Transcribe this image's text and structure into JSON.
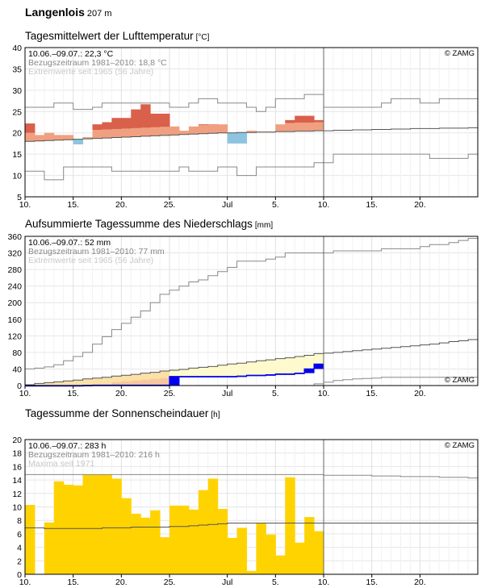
{
  "header": {
    "station": "Langenlois",
    "altitude": "207 m"
  },
  "x_axis": {
    "tick_labels": [
      "10.",
      "15.",
      "20.",
      "25.",
      "Jul",
      "5.",
      "10.",
      "15.",
      "20."
    ],
    "tick_days": [
      10,
      15,
      20,
      25,
      31,
      36,
      41,
      46,
      51
    ],
    "day_range": [
      10,
      56
    ],
    "today_day": 41
  },
  "chart_data": [
    {
      "type": "area",
      "title": "Tagesmittelwert der Lufttemperatur",
      "unit": "[°C]",
      "summary": {
        "period": "10.06.–09.07.: 22,3 °C",
        "reference": "Bezugszeitraum 1981–2010: 18,8 °C",
        "extremes": "Extremwerte seit 1965 (56 Jahre)"
      },
      "copyright": "© ZAMG",
      "ylim": [
        5,
        40
      ],
      "yticks": [
        5,
        10,
        15,
        20,
        25,
        30,
        35,
        40
      ],
      "colors": {
        "above_light": "#f0a080",
        "above_dark": "#d9604a",
        "below": "#8ec4e0",
        "line": "#555555",
        "extreme": "#888888"
      },
      "days": [
        10,
        11,
        12,
        13,
        14,
        15,
        16,
        17,
        18,
        19,
        20,
        21,
        22,
        23,
        24,
        25,
        26,
        27,
        28,
        29,
        30,
        31,
        32,
        33,
        34,
        35,
        36,
        37,
        38,
        39,
        40
      ],
      "values": [
        22.2,
        19.5,
        20,
        19.5,
        19.5,
        17.3,
        19,
        22,
        22.5,
        23.5,
        23.5,
        25.5,
        26.7,
        24.5,
        24.5,
        21.5,
        20.5,
        21.5,
        22,
        22,
        22,
        17.5,
        17.5,
        20.5,
        20.3,
        20.3,
        22,
        23,
        24,
        24,
        23
      ],
      "normal": [
        18.0,
        18.1,
        18.2,
        18.3,
        18.4,
        18.5,
        18.6,
        18.7,
        18.8,
        18.9,
        19.0,
        19.1,
        19.2,
        19.3,
        19.4,
        19.5,
        19.6,
        19.7,
        19.8,
        19.9,
        20.0,
        20.0,
        20.1,
        20.1,
        20.2,
        20.2,
        20.3,
        20.3,
        20.4,
        20.4,
        20.5,
        20.5,
        20.6,
        20.6,
        20.7,
        20.7,
        20.8,
        20.8,
        20.9,
        20.9,
        21.0,
        21.0,
        21.0,
        21.1,
        21.1,
        21.1,
        21.2
      ],
      "max": [
        26,
        26,
        26,
        27,
        27,
        25.5,
        25.5,
        26,
        27,
        27,
        27,
        27,
        27,
        27,
        27,
        26,
        26,
        27,
        28,
        28,
        27,
        27,
        27,
        26,
        25,
        26,
        28,
        28,
        28,
        29,
        29,
        26,
        26,
        26,
        26,
        26,
        26,
        27,
        28,
        28,
        28,
        27,
        27,
        28,
        28,
        28,
        28
      ],
      "min": [
        11,
        11,
        9,
        9,
        12,
        12,
        12,
        12,
        12,
        11,
        11,
        11,
        11,
        11,
        11,
        11,
        12,
        11,
        11,
        11,
        12,
        12,
        10,
        10,
        12,
        12,
        12,
        12,
        12,
        12,
        13,
        13,
        15,
        15,
        15,
        15,
        15,
        15,
        15,
        15,
        15,
        15,
        14,
        14,
        14,
        14,
        15
      ]
    },
    {
      "type": "area",
      "title": "Aufsummierte Tagessumme des Niederschlags",
      "unit": "[mm]",
      "summary": {
        "period": "10.06.–09.07.: 52 mm",
        "reference": "Bezugszeitraum 1981–2010: 77 mm",
        "extremes": "Extremwerte seit 1965 (56 Jahre)"
      },
      "copyright": "© ZAMG",
      "ylim": [
        0,
        360
      ],
      "yticks": [
        0,
        40,
        80,
        120,
        160,
        200,
        240,
        280,
        320,
        360
      ],
      "colors": {
        "actual": "#0000ee",
        "above_normal_fill": "#fffacd",
        "below_normal_fill": "#fbe1a8",
        "pre_event_fill": "#f7c7a0",
        "line": "#555555",
        "extreme": "#888888"
      },
      "days": [
        10,
        11,
        12,
        13,
        14,
        15,
        16,
        17,
        18,
        19,
        20,
        21,
        22,
        23,
        24,
        25,
        26,
        27,
        28,
        29,
        30,
        31,
        32,
        33,
        34,
        35,
        36,
        37,
        38,
        39,
        40
      ],
      "cumulative": [
        0,
        0,
        0,
        0,
        0,
        0,
        0.5,
        1,
        1,
        1,
        1,
        1,
        1,
        1,
        1,
        22,
        22,
        22,
        22,
        22,
        22,
        22,
        23,
        25,
        25,
        26,
        28,
        28,
        30,
        40,
        52
      ],
      "normal_cumulative": [
        2,
        5,
        7,
        9,
        11,
        13,
        16,
        18,
        20,
        23,
        25,
        27,
        30,
        32,
        35,
        37,
        39,
        42,
        44,
        46,
        49,
        52,
        54,
        57,
        60,
        62,
        65,
        67,
        70,
        73,
        77,
        78,
        80,
        82,
        84,
        86,
        88,
        90,
        92,
        94,
        96,
        98,
        100,
        103,
        106,
        108,
        111
      ],
      "max_cumulative": [
        40,
        42,
        45,
        50,
        60,
        70,
        80,
        100,
        118,
        135,
        150,
        165,
        180,
        200,
        220,
        230,
        240,
        250,
        255,
        265,
        275,
        285,
        300,
        300,
        300,
        305,
        310,
        320,
        320,
        320,
        320,
        320,
        325,
        325,
        325,
        325,
        325,
        330,
        330,
        330,
        330,
        335,
        340,
        340,
        345,
        350,
        355
      ],
      "min_cumulative": [
        0,
        0,
        0,
        0,
        0,
        0,
        0,
        0,
        0,
        0,
        0,
        0,
        0,
        0,
        0,
        0,
        0,
        0,
        0,
        0,
        0,
        0,
        0,
        0,
        0,
        0,
        0,
        0,
        0,
        0,
        4,
        8,
        12,
        14,
        16,
        17,
        18,
        20,
        20,
        20,
        20,
        20,
        20,
        20,
        20,
        20,
        20
      ]
    },
    {
      "type": "bar",
      "title": "Tagessumme der Sonnenscheindauer",
      "unit": "[h]",
      "summary": {
        "period": "10.06.–09.07.: 283 h",
        "reference": "Bezugszeitraum 1981–2010: 216 h",
        "extremes": "Maxima seit 1971"
      },
      "copyright": "© ZAMG",
      "ylim": [
        0,
        20
      ],
      "yticks": [
        0,
        2,
        4,
        6,
        8,
        10,
        12,
        14,
        16,
        18,
        20
      ],
      "colors": {
        "bar": "#ffd300",
        "line": "#555555",
        "extreme": "#888888"
      },
      "days": [
        10,
        11,
        12,
        13,
        14,
        15,
        16,
        17,
        18,
        19,
        20,
        21,
        22,
        23,
        24,
        25,
        26,
        27,
        28,
        29,
        30,
        31,
        32,
        33,
        34,
        35,
        36,
        37,
        38,
        39,
        40
      ],
      "values": [
        10.3,
        0,
        7.7,
        13.8,
        13.3,
        13.2,
        14.8,
        14.8,
        14.8,
        14.2,
        11.3,
        9.0,
        8.4,
        9.5,
        5.5,
        10.2,
        10.2,
        9.6,
        12.5,
        14.2,
        9.7,
        5.4,
        6.9,
        0.5,
        7.6,
        5.9,
        2.8,
        14.4,
        4.7,
        8.5,
        6.4
      ],
      "normal": [
        6.9,
        6.9,
        6.8,
        6.8,
        6.8,
        6.8,
        6.8,
        6.8,
        6.9,
        6.9,
        6.9,
        7.0,
        7.0,
        7.0,
        7.0,
        7.1,
        7.1,
        7.2,
        7.3,
        7.4,
        7.5,
        7.6,
        7.6,
        7.6,
        7.6,
        7.6,
        7.6,
        7.6,
        7.6,
        7.6,
        7.6,
        7.6,
        7.6,
        7.6,
        7.6,
        7.6,
        7.6,
        7.6,
        7.6,
        7.6,
        7.6,
        7.6,
        7.6,
        7.6,
        7.6,
        7.6,
        7.6
      ],
      "max": [
        14.8,
        14.8,
        14.8,
        14.8,
        14.8,
        14.8,
        14.8,
        14.8,
        14.8,
        14.8,
        14.8,
        14.8,
        14.8,
        14.8,
        14.8,
        14.8,
        14.8,
        14.8,
        14.8,
        14.8,
        14.8,
        14.8,
        14.8,
        14.8,
        14.8,
        14.8,
        14.8,
        14.8,
        14.8,
        14.8,
        14.8,
        14.7,
        14.7,
        14.7,
        14.7,
        14.7,
        14.6,
        14.6,
        14.6,
        14.5,
        14.5,
        14.5,
        14.5,
        14.4,
        14.4,
        14.4,
        14.3
      ]
    }
  ]
}
